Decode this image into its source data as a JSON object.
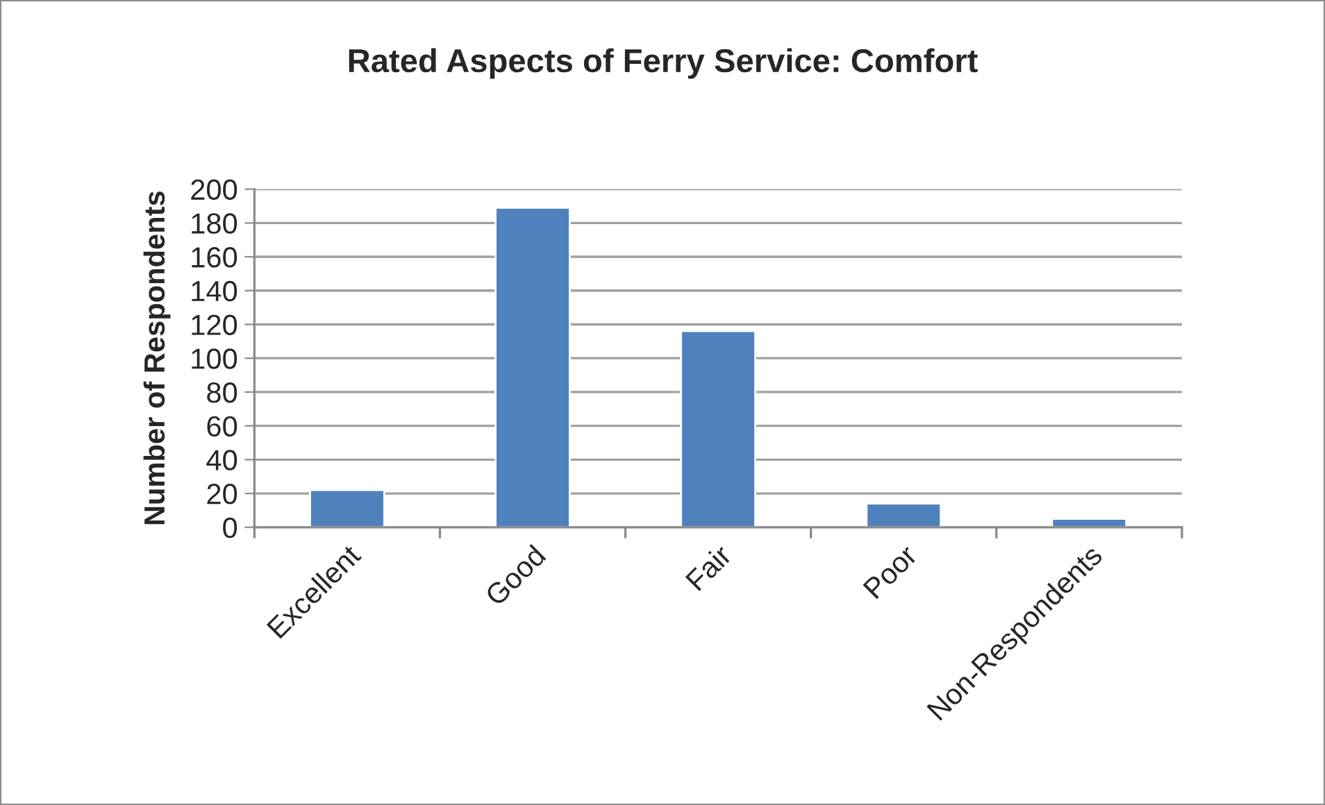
{
  "chart_data": {
    "type": "bar",
    "title": "Rated Aspects of Ferry Service: Comfort",
    "ylabel": "Number of Respondents",
    "categories": [
      "Excellent",
      "Good",
      "Fair",
      "Poor",
      "Non-Respondents"
    ],
    "values": [
      22,
      189,
      116,
      14,
      5
    ],
    "color": "#4f81bd",
    "ylim": [
      0,
      200
    ],
    "yticks": [
      0,
      20,
      40,
      60,
      80,
      100,
      120,
      140,
      160,
      180,
      200
    ],
    "grid": "y"
  }
}
